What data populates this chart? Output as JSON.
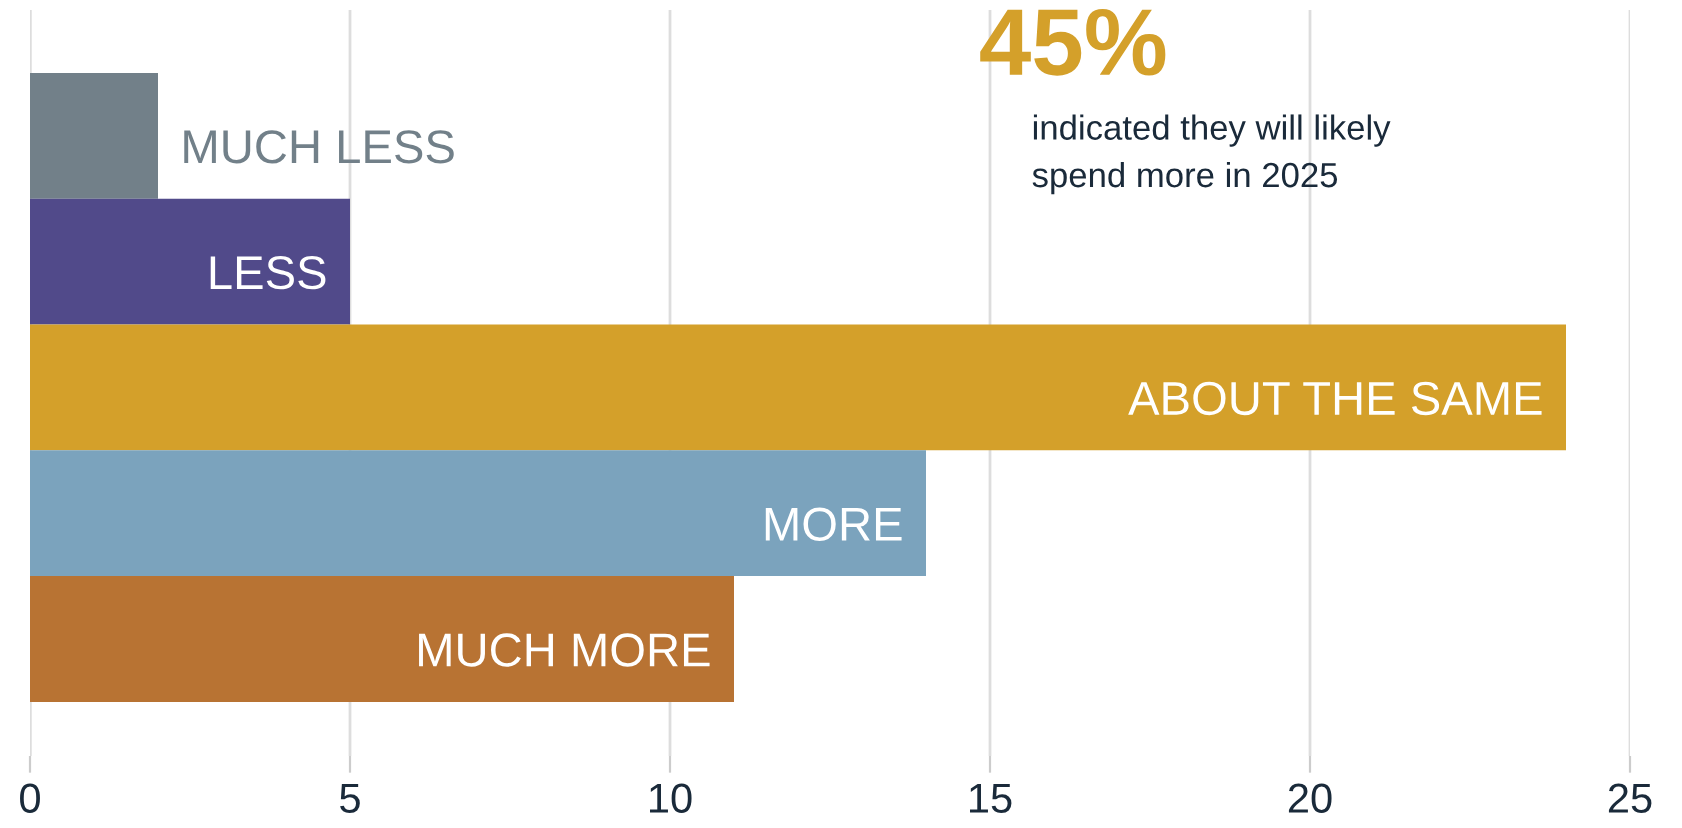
{
  "chart_data": {
    "type": "bar",
    "orientation": "horizontal",
    "categories": [
      "MUCH LESS",
      "LESS",
      "ABOUT THE SAME",
      "MORE",
      "MUCH MORE"
    ],
    "values": [
      2,
      5,
      24,
      14,
      11
    ],
    "colors": [
      "#728089",
      "#514a8a",
      "#d4a02a",
      "#7ba3bd",
      "#b87333"
    ],
    "xlim": [
      0,
      25
    ],
    "xticks": [
      0,
      5,
      10,
      15,
      20,
      25
    ],
    "grid": "x",
    "tick_labels": "x",
    "annotations": [
      "45%",
      "indicated they will likely\nspend more in 2025"
    ]
  }
}
